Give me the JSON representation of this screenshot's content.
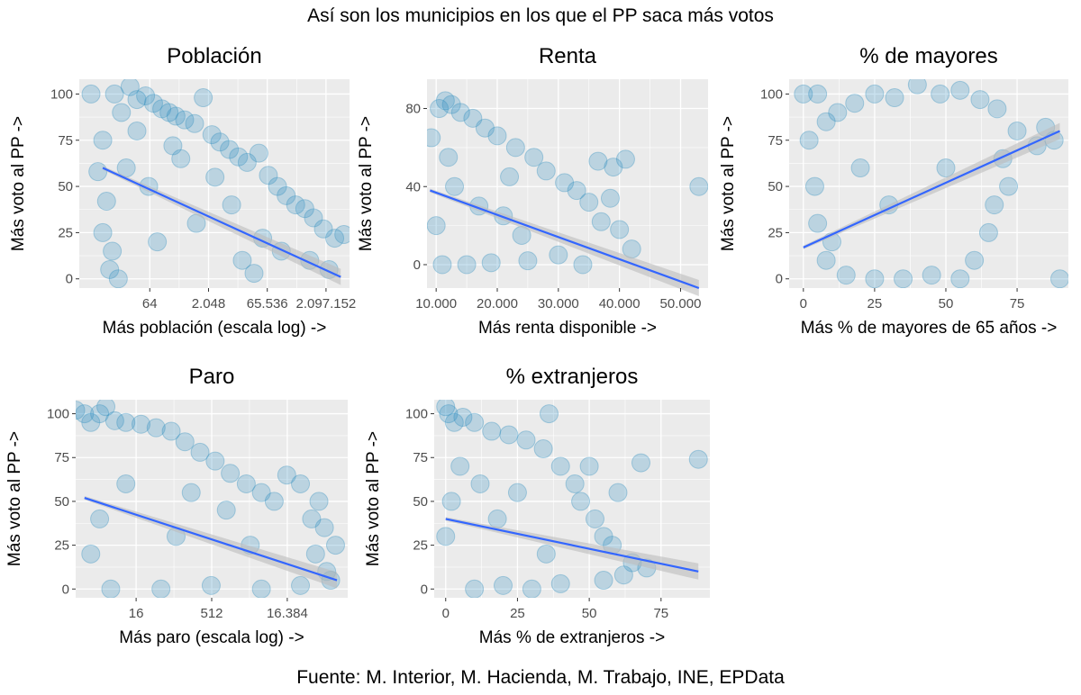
{
  "figure": {
    "title": "Así son los municipios en los que el PP saca más votos",
    "source": "Fuente: M. Interior, M. Hacienda, M. Trabajo,  INE, EPData"
  },
  "style": {
    "panel_background": "#ebebeb",
    "grid_color": "#ffffff",
    "point_color": "#2b8cbe",
    "point_opacity": 0.25,
    "line_color": "#3366ff",
    "ribbon_color": "#bdbdbd"
  },
  "chart_data": [
    {
      "type": "scatter",
      "title": "Población",
      "xlabel": "Más población (escala log) ->",
      "ylabel": "Más voto al PP ->",
      "x_scale": "log2",
      "xlim": [
        1,
        8388608
      ],
      "ylim": [
        -5,
        108
      ],
      "x_ticks": [
        {
          "value": 64,
          "label": "64"
        },
        {
          "value": 2048,
          "label": "2.048"
        },
        {
          "value": 65536,
          "label": "65.536"
        },
        {
          "value": 2097152,
          "label": "2.097.152"
        }
      ],
      "y_ticks": [
        {
          "value": 0,
          "label": "0"
        },
        {
          "value": 25,
          "label": "25"
        },
        {
          "value": 50,
          "label": "50"
        },
        {
          "value": 75,
          "label": "75"
        },
        {
          "value": 100,
          "label": "100"
        }
      ],
      "trend": {
        "x": [
          4,
          5000000
        ],
        "y": [
          60,
          1
        ]
      },
      "points": [
        {
          "x": 2,
          "y": 100
        },
        {
          "x": 4,
          "y": 75
        },
        {
          "x": 3,
          "y": 58
        },
        {
          "x": 5,
          "y": 42
        },
        {
          "x": 4,
          "y": 25
        },
        {
          "x": 6,
          "y": 5
        },
        {
          "x": 8,
          "y": 100
        },
        {
          "x": 12,
          "y": 90
        },
        {
          "x": 20,
          "y": 104
        },
        {
          "x": 30,
          "y": 97
        },
        {
          "x": 50,
          "y": 99
        },
        {
          "x": 80,
          "y": 95
        },
        {
          "x": 130,
          "y": 92
        },
        {
          "x": 200,
          "y": 90
        },
        {
          "x": 300,
          "y": 88
        },
        {
          "x": 500,
          "y": 86
        },
        {
          "x": 900,
          "y": 84
        },
        {
          "x": 1500,
          "y": 98
        },
        {
          "x": 2500,
          "y": 78
        },
        {
          "x": 4000,
          "y": 74
        },
        {
          "x": 7000,
          "y": 70
        },
        {
          "x": 12000,
          "y": 66
        },
        {
          "x": 20000,
          "y": 63
        },
        {
          "x": 40000,
          "y": 68
        },
        {
          "x": 70000,
          "y": 56
        },
        {
          "x": 120000,
          "y": 50
        },
        {
          "x": 200000,
          "y": 45
        },
        {
          "x": 350000,
          "y": 40
        },
        {
          "x": 600000,
          "y": 38
        },
        {
          "x": 1000000,
          "y": 33
        },
        {
          "x": 1800000,
          "y": 27
        },
        {
          "x": 3500000,
          "y": 22
        },
        {
          "x": 6000000,
          "y": 24
        },
        {
          "x": 2500000,
          "y": 5
        },
        {
          "x": 800000,
          "y": 10
        },
        {
          "x": 150000,
          "y": 15
        },
        {
          "x": 30000,
          "y": 3
        },
        {
          "x": 10,
          "y": 0
        },
        {
          "x": 100,
          "y": 20
        },
        {
          "x": 1000,
          "y": 30
        },
        {
          "x": 16,
          "y": 60
        },
        {
          "x": 60,
          "y": 50
        },
        {
          "x": 400,
          "y": 65
        },
        {
          "x": 8000,
          "y": 40
        },
        {
          "x": 50000,
          "y": 22
        },
        {
          "x": 250,
          "y": 72
        },
        {
          "x": 3000,
          "y": 55
        },
        {
          "x": 30,
          "y": 80
        },
        {
          "x": 15000,
          "y": 10
        },
        {
          "x": 7,
          "y": 15
        }
      ]
    },
    {
      "type": "scatter",
      "title": "Renta",
      "xlabel": "Más renta disponible ->",
      "ylabel": "Más voto al PP ->",
      "x_scale": "linear",
      "xlim": [
        8500,
        54500
      ],
      "ylim": [
        -12,
        95
      ],
      "x_ticks": [
        {
          "value": 10000,
          "label": "10.000"
        },
        {
          "value": 20000,
          "label": "20.000"
        },
        {
          "value": 30000,
          "label": "30.000"
        },
        {
          "value": 40000,
          "label": "40.000"
        },
        {
          "value": 50000,
          "label": "50.000"
        }
      ],
      "y_ticks": [
        {
          "value": 0,
          "label": "0"
        },
        {
          "value": 40,
          "label": "40"
        },
        {
          "value": 80,
          "label": "80"
        }
      ],
      "trend": {
        "x": [
          9000,
          53000
        ],
        "y": [
          38,
          -12
        ]
      },
      "points": [
        {
          "x": 9200,
          "y": 65
        },
        {
          "x": 10500,
          "y": 80
        },
        {
          "x": 11500,
          "y": 84
        },
        {
          "x": 12500,
          "y": 82
        },
        {
          "x": 14000,
          "y": 78
        },
        {
          "x": 16000,
          "y": 75
        },
        {
          "x": 18000,
          "y": 70
        },
        {
          "x": 20000,
          "y": 66
        },
        {
          "x": 23000,
          "y": 60
        },
        {
          "x": 26000,
          "y": 55
        },
        {
          "x": 28000,
          "y": 48
        },
        {
          "x": 31000,
          "y": 42
        },
        {
          "x": 33000,
          "y": 38
        },
        {
          "x": 35000,
          "y": 32
        },
        {
          "x": 37000,
          "y": 22
        },
        {
          "x": 40000,
          "y": 18
        },
        {
          "x": 42000,
          "y": 8
        },
        {
          "x": 36500,
          "y": 53
        },
        {
          "x": 39000,
          "y": 50
        },
        {
          "x": 41000,
          "y": 54
        },
        {
          "x": 53000,
          "y": 40
        },
        {
          "x": 38500,
          "y": 34
        },
        {
          "x": 30000,
          "y": 5
        },
        {
          "x": 25000,
          "y": 2
        },
        {
          "x": 34000,
          "y": 0
        },
        {
          "x": 11000,
          "y": 0
        },
        {
          "x": 15000,
          "y": 0
        },
        {
          "x": 19000,
          "y": 1
        },
        {
          "x": 13000,
          "y": 40
        },
        {
          "x": 17000,
          "y": 30
        },
        {
          "x": 21000,
          "y": 25
        },
        {
          "x": 24000,
          "y": 15
        },
        {
          "x": 10000,
          "y": 20
        },
        {
          "x": 12000,
          "y": 55
        },
        {
          "x": 22000,
          "y": 45
        }
      ]
    },
    {
      "type": "scatter",
      "title": "% de mayores",
      "xlabel": "Más % de mayores de 65 años ->",
      "ylabel": "Más voto al PP ->",
      "x_scale": "linear",
      "xlim": [
        -5,
        93
      ],
      "ylim": [
        -5,
        108
      ],
      "x_ticks": [
        {
          "value": 0,
          "label": "0"
        },
        {
          "value": 25,
          "label": "25"
        },
        {
          "value": 50,
          "label": "50"
        },
        {
          "value": 75,
          "label": "75"
        }
      ],
      "y_ticks": [
        {
          "value": 0,
          "label": "0"
        },
        {
          "value": 25,
          "label": "25"
        },
        {
          "value": 50,
          "label": "50"
        },
        {
          "value": 75,
          "label": "75"
        },
        {
          "value": 100,
          "label": "100"
        }
      ],
      "trend": {
        "x": [
          0,
          90
        ],
        "y": [
          17,
          80
        ]
      },
      "points": [
        {
          "x": 0,
          "y": 100
        },
        {
          "x": 5,
          "y": 100
        },
        {
          "x": 2,
          "y": 75
        },
        {
          "x": 8,
          "y": 85
        },
        {
          "x": 12,
          "y": 90
        },
        {
          "x": 18,
          "y": 95
        },
        {
          "x": 25,
          "y": 100
        },
        {
          "x": 32,
          "y": 98
        },
        {
          "x": 40,
          "y": 105
        },
        {
          "x": 48,
          "y": 100
        },
        {
          "x": 55,
          "y": 102
        },
        {
          "x": 62,
          "y": 97
        },
        {
          "x": 68,
          "y": 92
        },
        {
          "x": 75,
          "y": 80
        },
        {
          "x": 85,
          "y": 82
        },
        {
          "x": 82,
          "y": 72
        },
        {
          "x": 88,
          "y": 75
        },
        {
          "x": 70,
          "y": 65
        },
        {
          "x": 72,
          "y": 50
        },
        {
          "x": 67,
          "y": 40
        },
        {
          "x": 65,
          "y": 25
        },
        {
          "x": 60,
          "y": 10
        },
        {
          "x": 55,
          "y": 0
        },
        {
          "x": 45,
          "y": 2
        },
        {
          "x": 35,
          "y": 0
        },
        {
          "x": 25,
          "y": 0
        },
        {
          "x": 15,
          "y": 2
        },
        {
          "x": 8,
          "y": 10
        },
        {
          "x": 5,
          "y": 30
        },
        {
          "x": 4,
          "y": 50
        },
        {
          "x": 90,
          "y": 0
        },
        {
          "x": 20,
          "y": 60
        },
        {
          "x": 30,
          "y": 40
        },
        {
          "x": 50,
          "y": 60
        },
        {
          "x": 10,
          "y": 20
        }
      ]
    },
    {
      "type": "scatter",
      "title": "Paro",
      "xlabel": "Más paro (escala log) ->",
      "ylabel": "Más voto al PP ->",
      "x_scale": "log2",
      "xlim": [
        1,
        262144
      ],
      "ylim": [
        -5,
        108
      ],
      "x_ticks": [
        {
          "value": 16,
          "label": "16"
        },
        {
          "value": 512,
          "label": "512"
        },
        {
          "value": 16384,
          "label": "16.384"
        }
      ],
      "y_ticks": [
        {
          "value": 0,
          "label": "0"
        },
        {
          "value": 25,
          "label": "25"
        },
        {
          "value": 50,
          "label": "50"
        },
        {
          "value": 75,
          "label": "75"
        },
        {
          "value": 100,
          "label": "100"
        }
      ],
      "trend": {
        "x": [
          1.5,
          160000
        ],
        "y": [
          52,
          5
        ]
      },
      "points": [
        {
          "x": 1,
          "y": 102
        },
        {
          "x": 1.5,
          "y": 100
        },
        {
          "x": 2,
          "y": 95
        },
        {
          "x": 3,
          "y": 100
        },
        {
          "x": 4,
          "y": 104
        },
        {
          "x": 6,
          "y": 96
        },
        {
          "x": 10,
          "y": 95
        },
        {
          "x": 20,
          "y": 94
        },
        {
          "x": 40,
          "y": 92
        },
        {
          "x": 80,
          "y": 90
        },
        {
          "x": 150,
          "y": 84
        },
        {
          "x": 300,
          "y": 78
        },
        {
          "x": 600,
          "y": 73
        },
        {
          "x": 1200,
          "y": 66
        },
        {
          "x": 2500,
          "y": 60
        },
        {
          "x": 5000,
          "y": 55
        },
        {
          "x": 9000,
          "y": 50
        },
        {
          "x": 16000,
          "y": 65
        },
        {
          "x": 30000,
          "y": 60
        },
        {
          "x": 50000,
          "y": 40
        },
        {
          "x": 90000,
          "y": 35
        },
        {
          "x": 70000,
          "y": 50
        },
        {
          "x": 150000,
          "y": 25
        },
        {
          "x": 60000,
          "y": 20
        },
        {
          "x": 100000,
          "y": 10
        },
        {
          "x": 120000,
          "y": 5
        },
        {
          "x": 30000,
          "y": 2
        },
        {
          "x": 5,
          "y": 0
        },
        {
          "x": 50,
          "y": 0
        },
        {
          "x": 500,
          "y": 2
        },
        {
          "x": 5000,
          "y": 0
        },
        {
          "x": 3,
          "y": 40
        },
        {
          "x": 10,
          "y": 60
        },
        {
          "x": 100,
          "y": 30
        },
        {
          "x": 1000,
          "y": 45
        },
        {
          "x": 2,
          "y": 20
        },
        {
          "x": 200,
          "y": 55
        },
        {
          "x": 3000,
          "y": 25
        }
      ]
    },
    {
      "type": "scatter",
      "title": "% extranjeros",
      "xlabel": "Más % de extranjeros ->",
      "ylabel": "Más voto al PP ->",
      "x_scale": "linear",
      "xlim": [
        -4,
        92
      ],
      "ylim": [
        -5,
        108
      ],
      "x_ticks": [
        {
          "value": 0,
          "label": "0"
        },
        {
          "value": 25,
          "label": "25"
        },
        {
          "value": 50,
          "label": "50"
        },
        {
          "value": 75,
          "label": "75"
        }
      ],
      "y_ticks": [
        {
          "value": 0,
          "label": "0"
        },
        {
          "value": 25,
          "label": "25"
        },
        {
          "value": 50,
          "label": "50"
        },
        {
          "value": 75,
          "label": "75"
        },
        {
          "value": 100,
          "label": "100"
        }
      ],
      "trend": {
        "x": [
          0,
          88
        ],
        "y": [
          40,
          10
        ]
      },
      "points": [
        {
          "x": 0,
          "y": 104
        },
        {
          "x": 1,
          "y": 100
        },
        {
          "x": 3,
          "y": 95
        },
        {
          "x": 6,
          "y": 98
        },
        {
          "x": 10,
          "y": 95
        },
        {
          "x": 16,
          "y": 90
        },
        {
          "x": 22,
          "y": 88
        },
        {
          "x": 28,
          "y": 85
        },
        {
          "x": 36,
          "y": 100
        },
        {
          "x": 34,
          "y": 80
        },
        {
          "x": 40,
          "y": 70
        },
        {
          "x": 45,
          "y": 60
        },
        {
          "x": 50,
          "y": 70
        },
        {
          "x": 47,
          "y": 50
        },
        {
          "x": 52,
          "y": 40
        },
        {
          "x": 55,
          "y": 30
        },
        {
          "x": 58,
          "y": 25
        },
        {
          "x": 60,
          "y": 55
        },
        {
          "x": 65,
          "y": 15
        },
        {
          "x": 70,
          "y": 12
        },
        {
          "x": 62,
          "y": 8
        },
        {
          "x": 68,
          "y": 72
        },
        {
          "x": 88,
          "y": 74
        },
        {
          "x": 55,
          "y": 5
        },
        {
          "x": 40,
          "y": 3
        },
        {
          "x": 30,
          "y": 0
        },
        {
          "x": 20,
          "y": 2
        },
        {
          "x": 10,
          "y": 0
        },
        {
          "x": 0,
          "y": 30
        },
        {
          "x": 2,
          "y": 50
        },
        {
          "x": 5,
          "y": 70
        },
        {
          "x": 12,
          "y": 60
        },
        {
          "x": 18,
          "y": 40
        },
        {
          "x": 25,
          "y": 55
        },
        {
          "x": 35,
          "y": 20
        }
      ]
    }
  ]
}
